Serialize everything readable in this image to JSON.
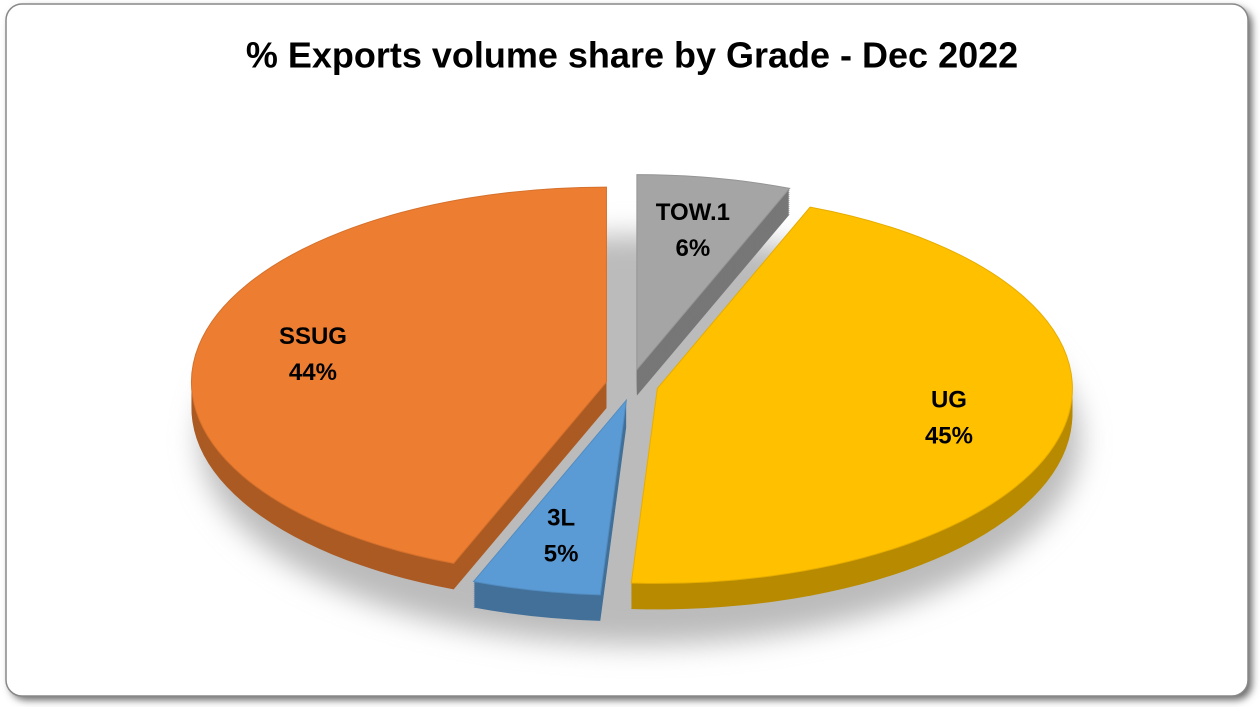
{
  "chart_data": {
    "type": "pie",
    "title": "% Exports volume share by Grade - Dec 2022",
    "categories": [
      "TOW.1",
      "UG",
      "3L",
      "SSUG"
    ],
    "values": [
      6,
      45,
      5,
      44
    ],
    "value_labels": [
      "6%",
      "45%",
      "5%",
      "44%"
    ],
    "colors": [
      "#a5a5a5",
      "#ffc000",
      "#5b9bd5",
      "#ed7d31"
    ]
  }
}
